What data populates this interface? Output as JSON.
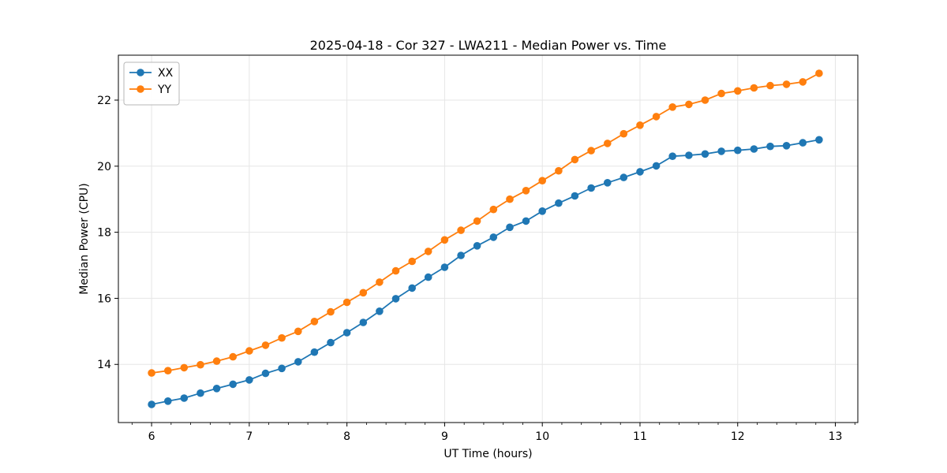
{
  "chart_data": {
    "type": "line",
    "title": "2025-04-18 - Cor 327 - LWA211 - Median Power vs. Time",
    "xlabel": "UT Time (hours)",
    "ylabel": "Median Power (CPU)",
    "xlim": [
      5.66,
      13.23
    ],
    "ylim": [
      12.24,
      23.36
    ],
    "xticks": [
      6,
      7,
      8,
      9,
      10,
      11,
      12,
      13
    ],
    "yticks": [
      14,
      16,
      18,
      20,
      22
    ],
    "x_minor_step": 0.2,
    "grid": true,
    "grid_color": "#e6e6e6",
    "spine_color": "#000000",
    "legend_position": "upper left",
    "x": [
      6.0,
      6.167,
      6.333,
      6.5,
      6.667,
      6.833,
      7.0,
      7.167,
      7.333,
      7.5,
      7.667,
      7.833,
      8.0,
      8.167,
      8.333,
      8.5,
      8.667,
      8.833,
      9.0,
      9.167,
      9.333,
      9.5,
      9.667,
      9.833,
      10.0,
      10.167,
      10.333,
      10.5,
      10.667,
      10.833,
      11.0,
      11.167,
      11.333,
      11.5,
      11.667,
      11.833,
      12.0,
      12.167,
      12.333,
      12.5,
      12.667,
      12.833
    ],
    "series": [
      {
        "name": "XX",
        "color": "#1f77b4",
        "marker": "circle",
        "values": [
          12.79,
          12.89,
          12.98,
          13.13,
          13.27,
          13.4,
          13.53,
          13.73,
          13.88,
          14.08,
          14.37,
          14.66,
          14.96,
          15.27,
          15.61,
          15.99,
          16.31,
          16.64,
          16.94,
          17.3,
          17.59,
          17.85,
          18.15,
          18.34,
          18.64,
          18.88,
          19.1,
          19.34,
          19.5,
          19.66,
          19.83,
          20.01,
          20.3,
          20.33,
          20.37,
          20.45,
          20.48,
          20.52,
          20.6,
          20.62,
          20.71,
          20.8
        ]
      },
      {
        "name": "YY",
        "color": "#ff7f0e",
        "marker": "circle",
        "values": [
          13.74,
          13.81,
          13.9,
          13.99,
          14.1,
          14.23,
          14.41,
          14.58,
          14.8,
          15.0,
          15.3,
          15.59,
          15.88,
          16.17,
          16.49,
          16.83,
          17.12,
          17.42,
          17.77,
          18.06,
          18.34,
          18.69,
          19.0,
          19.26,
          19.56,
          19.86,
          20.2,
          20.47,
          20.69,
          20.98,
          21.24,
          21.5,
          21.79,
          21.87,
          22.0,
          22.2,
          22.28,
          22.37,
          22.44,
          22.48,
          22.55,
          22.81
        ]
      }
    ]
  }
}
